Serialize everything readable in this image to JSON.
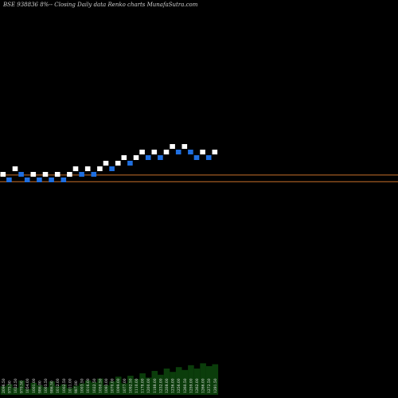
{
  "header": {
    "title": "BSE 938836  8%--  Closing Daily data  Renko  charts MunafaSutra.com"
  },
  "chart_data": {
    "type": "renko",
    "title": "BSE 938836  8%--  Closing Daily data  Renko  charts MunafaSutra.com",
    "brick_size": 1,
    "bricks": [
      {
        "level": 0,
        "dir": "up"
      },
      {
        "level": -1,
        "dir": "down"
      },
      {
        "level": 1,
        "dir": "up"
      },
      {
        "level": 0,
        "dir": "down"
      },
      {
        "level": -1,
        "dir": "down"
      },
      {
        "level": 0,
        "dir": "up"
      },
      {
        "level": -1,
        "dir": "down"
      },
      {
        "level": 0,
        "dir": "up"
      },
      {
        "level": -1,
        "dir": "down"
      },
      {
        "level": 0,
        "dir": "up"
      },
      {
        "level": -1,
        "dir": "down"
      },
      {
        "level": 0,
        "dir": "up"
      },
      {
        "level": 1,
        "dir": "up"
      },
      {
        "level": 0,
        "dir": "down"
      },
      {
        "level": 1,
        "dir": "up"
      },
      {
        "level": 0,
        "dir": "down"
      },
      {
        "level": 1,
        "dir": "up"
      },
      {
        "level": 2,
        "dir": "up"
      },
      {
        "level": 1,
        "dir": "down"
      },
      {
        "level": 2,
        "dir": "up"
      },
      {
        "level": 3,
        "dir": "up"
      },
      {
        "level": 2,
        "dir": "down"
      },
      {
        "level": 3,
        "dir": "up"
      },
      {
        "level": 4,
        "dir": "up"
      },
      {
        "level": 3,
        "dir": "down"
      },
      {
        "level": 4,
        "dir": "up"
      },
      {
        "level": 3,
        "dir": "down"
      },
      {
        "level": 4,
        "dir": "up"
      },
      {
        "level": 5,
        "dir": "up"
      },
      {
        "level": 4,
        "dir": "down"
      },
      {
        "level": 5,
        "dir": "up"
      },
      {
        "level": 4,
        "dir": "down"
      },
      {
        "level": 3,
        "dir": "down"
      },
      {
        "level": 4,
        "dir": "up"
      },
      {
        "level": 3,
        "dir": "down"
      },
      {
        "level": 4,
        "dir": "up"
      }
    ],
    "reference_lines": [
      {
        "level": 0.3,
        "color": "#c8702a"
      },
      {
        "level": -0.9,
        "color": "#c8702a"
      }
    ],
    "volume": [
      {
        "label": "2096.50",
        "value": 0.18
      },
      {
        "label": "975.50",
        "value": 0.22
      },
      {
        "label": "1022.50",
        "value": 0.15
      },
      {
        "label": "970.50",
        "value": 0.3
      },
      {
        "label": "1054.00",
        "value": 0.12
      },
      {
        "label": "1001.00",
        "value": 0.25
      },
      {
        "label": "986.00",
        "value": 0.2
      },
      {
        "label": "1003.50",
        "value": 0.16
      },
      {
        "label": "986.50",
        "value": 0.28
      },
      {
        "label": "1012.00",
        "value": 0.18
      },
      {
        "label": "1002.50",
        "value": 0.22
      },
      {
        "label": "1011.00",
        "value": 0.14
      },
      {
        "label": "987.00",
        "value": 0.19
      },
      {
        "label": "1003.50",
        "value": 0.24
      },
      {
        "label": "1016.00",
        "value": 0.3
      },
      {
        "label": "1022.50",
        "value": 0.26
      },
      {
        "label": "1050.50",
        "value": 0.34
      },
      {
        "label": "1093.00",
        "value": 0.2
      },
      {
        "label": "1070.00",
        "value": 0.28
      },
      {
        "label": "1099.00",
        "value": 0.38
      },
      {
        "label": "1077.00",
        "value": 0.24
      },
      {
        "label": "1092.50",
        "value": 0.4
      },
      {
        "label": "1110.00",
        "value": 0.33
      },
      {
        "label": "1178.00",
        "value": 0.45
      },
      {
        "label": "1200.00",
        "value": 0.36
      },
      {
        "label": "1188.00",
        "value": 0.5
      },
      {
        "label": "1232.00",
        "value": 0.42
      },
      {
        "label": "1208.00",
        "value": 0.55
      },
      {
        "label": "1236.00",
        "value": 0.48
      },
      {
        "label": "1256.00",
        "value": 0.58
      },
      {
        "label": "1260.50",
        "value": 0.52
      },
      {
        "label": "1259.00",
        "value": 0.62
      },
      {
        "label": "1262.00",
        "value": 0.55
      },
      {
        "label": "1266.00",
        "value": 0.66
      },
      {
        "label": "1272.50",
        "value": 0.6
      },
      {
        "label": "1281.50",
        "value": 0.64
      }
    ]
  }
}
